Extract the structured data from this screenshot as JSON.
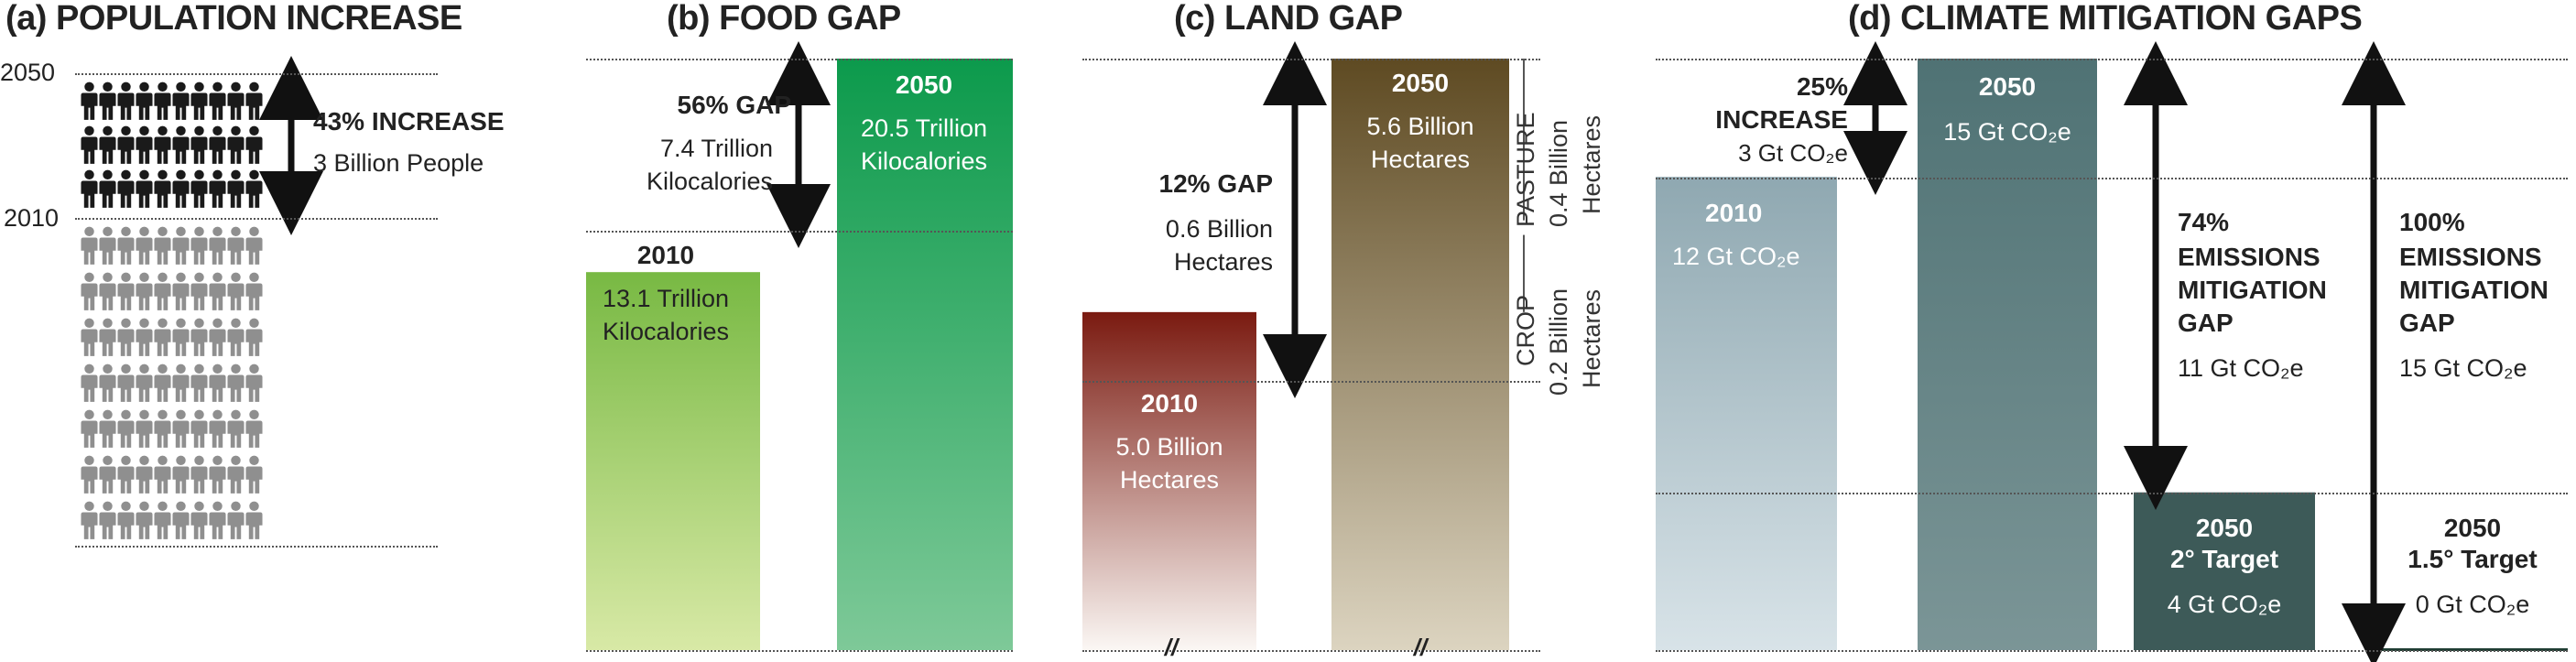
{
  "colors": {
    "people_2050": "#1a1a1a",
    "people_2010": "#8f8f8f",
    "food_2010_top": "#78b943",
    "food_2010_bottom": "#d8e9a6",
    "food_2050_top": "#0c9a4c",
    "food_2050_bottom": "#7ec998",
    "land_2010_top": "#7a1a10",
    "land_2010_bottom": "#fbf7f4",
    "land_2050_top": "#5e4a22",
    "land_2050_bottom": "#dcd4c0",
    "climate_2010_top": "#8fa8b1",
    "climate_2010_bottom": "#d8e3e8",
    "climate_2050": "#4f7274",
    "target_2c": "#3d5a58",
    "target_15c": "#1f3d33"
  },
  "panels": {
    "a": {
      "title": "(a) POPULATION INCREASE",
      "year_top": "2050",
      "year_mid": "2010",
      "gap_title": "43% INCREASE",
      "gap_detail": "3 Billion People",
      "icon": "person-icon"
    },
    "b": {
      "title": "(b) FOOD GAP",
      "gap_title": "56% GAP",
      "gap_detail_1": "7.4 Trillion",
      "gap_detail_2": "Kilocalories",
      "bar_2010_year": "2010",
      "bar_2010_value_1": "13.1 Trillion",
      "bar_2010_value_2": "Kilocalories",
      "bar_2050_year": "2050",
      "bar_2050_value_1": "20.5 Trillion",
      "bar_2050_value_2": "Kilocalories"
    },
    "c": {
      "title": "(c) LAND GAP",
      "gap_title": "12% GAP",
      "gap_detail_1": "0.6 Billion",
      "gap_detail_2": "Hectares",
      "bar_2010_year": "2010",
      "bar_2010_value_1": "5.0 Billion",
      "bar_2010_value_2": "Hectares",
      "bar_2050_year": "2050",
      "bar_2050_value_1": "5.6 Billion",
      "bar_2050_value_2": "Hectares",
      "pasture_label": "PASTURE",
      "pasture_value_1": "0.4 Billion",
      "pasture_value_2": "Hectares",
      "crop_label": "CROP",
      "crop_value_1": "0.2 Billion",
      "crop_value_2": "Hectares",
      "break_mark": "//"
    },
    "d": {
      "title": "(d) CLIMATE MITIGATION GAPS",
      "increase_pct": "25%",
      "increase_word": "INCREASE",
      "increase_value": "3 Gt CO₂e",
      "bar_2010_year": "2010",
      "bar_2010_value": "12 Gt CO₂e",
      "bar_2050_year": "2050",
      "bar_2050_value": "15 Gt CO₂e",
      "gap74_pct": "74%",
      "gap74_l1": "EMISSIONS",
      "gap74_l2": "MITIGATION",
      "gap74_l3": "GAP",
      "gap74_value": "11 Gt CO₂e",
      "gap100_pct": "100%",
      "gap100_l1": "EMISSIONS",
      "gap100_l2": "MITIGATION",
      "gap100_l3": "GAP",
      "gap100_value": "15 Gt CO₂e",
      "t2_year": "2050",
      "t2_name": "2° Target",
      "t2_value": "4 Gt CO₂e",
      "t15_year": "2050",
      "t15_name": "1.5° Target",
      "t15_value": "0 Gt CO₂e"
    }
  },
  "chart_data": [
    {
      "type": "bar",
      "panel": "a",
      "title": "(a) POPULATION INCREASE",
      "categories": [
        "2010",
        "2050"
      ],
      "gap": "3 Billion People",
      "gap_percent": 43
    },
    {
      "type": "bar",
      "panel": "b",
      "title": "(b) FOOD GAP",
      "categories": [
        "2010",
        "2050"
      ],
      "values": [
        13.1,
        20.5
      ],
      "unit": "Trillion Kilocalories",
      "gap": 7.4,
      "gap_percent": 56
    },
    {
      "type": "bar",
      "panel": "c",
      "title": "(c) LAND GAP",
      "categories": [
        "2010",
        "2050"
      ],
      "values": [
        5.0,
        5.6
      ],
      "unit": "Billion Hectares",
      "gap": 0.6,
      "gap_percent": 12,
      "gap_breakdown": [
        {
          "name": "PASTURE",
          "value": 0.4
        },
        {
          "name": "CROP",
          "value": 0.2
        }
      ],
      "axis_break": true
    },
    {
      "type": "bar",
      "panel": "d",
      "title": "(d) CLIMATE MITIGATION GAPS",
      "categories": [
        "2010",
        "2050",
        "2050 2° Target",
        "2050 1.5° Target"
      ],
      "values": [
        12,
        15,
        4,
        0
      ],
      "unit": "Gt CO2e",
      "increase": 3,
      "increase_percent": 25,
      "mitigation_gaps": [
        {
          "target": "2° Target",
          "value": 11,
          "percent": 74
        },
        {
          "target": "1.5° Target",
          "value": 15,
          "percent": 100
        }
      ]
    }
  ]
}
